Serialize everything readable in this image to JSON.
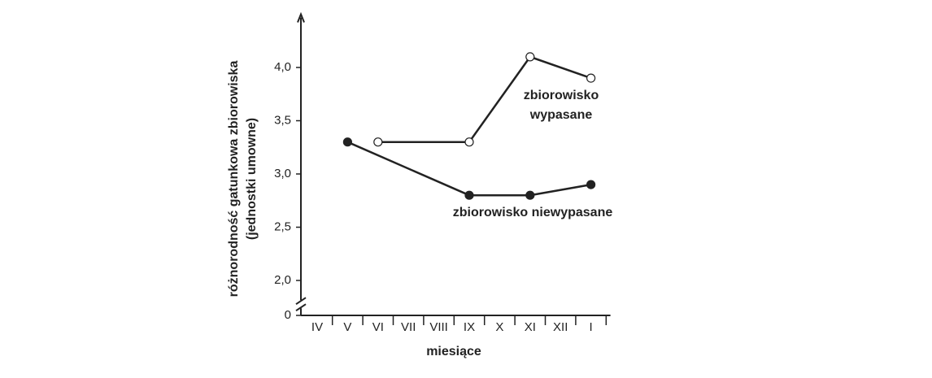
{
  "chart_data": {
    "type": "line",
    "ylabel": [
      "różnorodność gatunkowa zbiorowiska",
      "(jednostki umowne)"
    ],
    "xlabel": "miesiące",
    "categories": [
      "IV",
      "V",
      "VI",
      "VII",
      "VIII",
      "IX",
      "X",
      "XI",
      "XII",
      "I"
    ],
    "series": [
      {
        "name": "zbiorowisko wypasane",
        "color": "#222222",
        "marker": "open",
        "values": [
          null,
          null,
          3.3,
          null,
          null,
          3.3,
          null,
          4.1,
          null,
          3.9
        ]
      },
      {
        "name": "zbiorowisko niewypasane",
        "color": "#222222",
        "marker": "filled",
        "values": [
          null,
          3.3,
          null,
          null,
          null,
          2.8,
          null,
          2.8,
          null,
          2.9
        ]
      }
    ],
    "connect_gaps": true,
    "ylim": [
      1.8,
      4.5
    ],
    "y_break": true,
    "yticks": [
      {
        "value": 0,
        "label": "0"
      },
      {
        "value": 2,
        "label": "2,0"
      },
      {
        "value": 2.5,
        "label": "2,5"
      },
      {
        "value": 3,
        "label": "3,0"
      },
      {
        "value": 3.5,
        "label": "3,5"
      },
      {
        "value": 4,
        "label": "4,0"
      }
    ]
  }
}
